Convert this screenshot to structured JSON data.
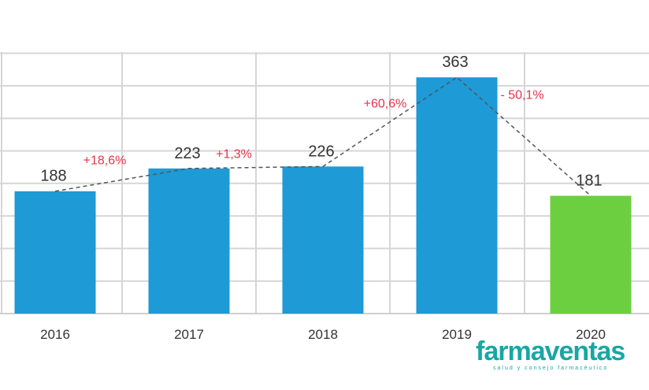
{
  "chart_data": {
    "type": "bar",
    "categories": [
      "2016",
      "2017",
      "2018",
      "2019",
      "2020"
    ],
    "values": [
      188,
      223,
      226,
      363,
      181
    ],
    "value_labels": [
      "188",
      "223",
      "226",
      "363",
      "181"
    ],
    "changes": [
      "+18,6%",
      "+1,3%",
      "+60,6%",
      "- 50,1%"
    ],
    "ylim": [
      0,
      400
    ],
    "grid": true,
    "trend_line": "dashed",
    "colors": {
      "bar": "#1e9ad6",
      "highlight_bar": "#6ccf3f",
      "change_text": "#e8334a",
      "grid": "#d6d6d6",
      "trend": "#555555"
    },
    "highlight_index": 4
  },
  "logo": {
    "name": "farmaventas",
    "tagline": "salud y consejo farmacéutico",
    "color": "#18a7a3"
  }
}
